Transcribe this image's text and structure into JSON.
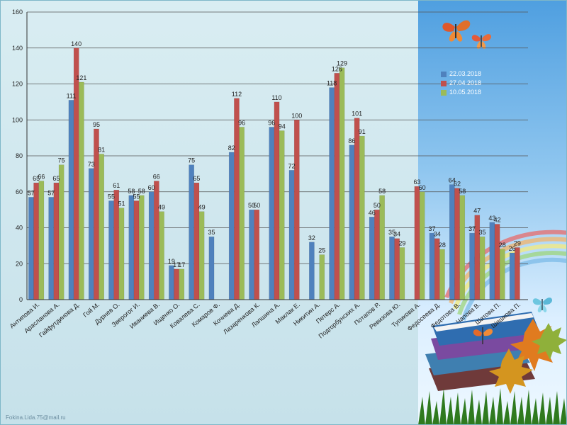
{
  "footer": {
    "email": "Fokina.Lida.75@mail.ru"
  },
  "colors": {
    "series1": "#4f81bd",
    "series2": "#c0504d",
    "series3": "#9bbb59"
  },
  "chart_data": {
    "type": "bar",
    "title": "",
    "xlabel": "",
    "ylabel": "",
    "ylim": [
      0,
      160
    ],
    "yticks": [
      0,
      20,
      40,
      60,
      80,
      100,
      120,
      140,
      160
    ],
    "grid": true,
    "legend_position": "right",
    "categories": [
      "Антипова И.",
      "Арасланова А.",
      "Гайфутдинова Д.",
      "Гой М.",
      "Дурнев О.",
      "Зверогог И.",
      "Иваниева В.",
      "Ищенко О.",
      "Ковалева С.",
      "Комаров Ф.",
      "Кочнева Д.",
      "Лазаренкова К.",
      "Лапшина А.",
      "Маклак Е.",
      "Никитин А.",
      "Петерс А.",
      "Подгорбунских А.",
      "Потапов Р.",
      "Ревизова Ю.",
      "Тупикова А.",
      "Федосеева Д.",
      "Федотова В.",
      "Чапова В.",
      "Шатова П.",
      "Шишкова П."
    ],
    "series": [
      {
        "name": "22.03.2018",
        "values": [
          57,
          57,
          111,
          73,
          55,
          58,
          60,
          19,
          75,
          35,
          82,
          50,
          96,
          72,
          32,
          118,
          86,
          46,
          35,
          null,
          37,
          64,
          37,
          43,
          26
        ]
      },
      {
        "name": "27.04.2018",
        "values": [
          65,
          65,
          140,
          95,
          61,
          55,
          66,
          17,
          65,
          null,
          112,
          50,
          110,
          100,
          null,
          126,
          101,
          50,
          34,
          63,
          34,
          62,
          47,
          42,
          29
        ]
      },
      {
        "name": "10.05.2018",
        "values": [
          66,
          75,
          121,
          81,
          51,
          58,
          49,
          17,
          49,
          null,
          96,
          null,
          94,
          null,
          25,
          129,
          91,
          58,
          29,
          60,
          28,
          58,
          35,
          28,
          null
        ]
      }
    ]
  }
}
